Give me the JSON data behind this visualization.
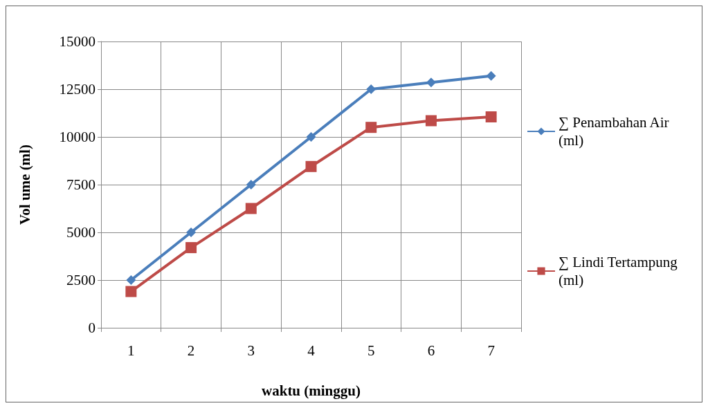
{
  "chart_data": {
    "type": "line",
    "xlabel": "waktu (minggu)",
    "ylabel": "Vol ume (ml)",
    "categories": [
      "1",
      "2",
      "3",
      "4",
      "5",
      "6",
      "7"
    ],
    "series": [
      {
        "name": "∑ Penambahan Air (ml)",
        "color": "#4a7ebb",
        "marker": "diamond",
        "values": [
          2500,
          5000,
          7500,
          10000,
          12500,
          12850,
          13200
        ]
      },
      {
        "name": "∑ Lindi Tertampung (ml)",
        "color": "#be4b48",
        "marker": "square",
        "values": [
          1900,
          4200,
          6250,
          8450,
          10500,
          10850,
          11050
        ]
      }
    ],
    "ylim": [
      0,
      15000
    ],
    "yticks": [
      0,
      2500,
      5000,
      7500,
      10000,
      12500,
      15000
    ],
    "grid": true,
    "legend": "right"
  }
}
